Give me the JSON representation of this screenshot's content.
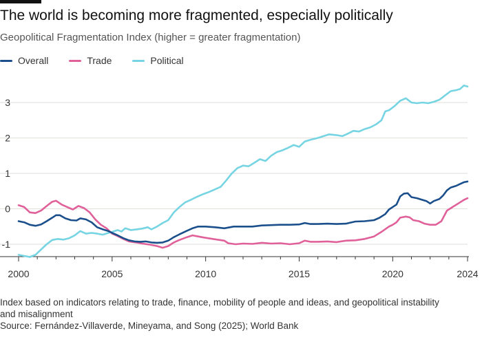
{
  "title": "The world is becoming more fragmented, especially politically",
  "subtitle": "Geopolitical Fragmentation Index (higher = greater fragmentation)",
  "footnote": "Index based on indicators relating to trade, finance, mobility of people and ideas, and geopolitical instability and misalignment",
  "source": "Source: Fernández-Villaverde, Mineyama, and Song (2025); World Bank",
  "colors": {
    "overall": "#1a4f8b",
    "trade": "#e0609a",
    "political": "#76d4e3",
    "grid": "#e2ded9",
    "axis": "#333333"
  },
  "chart_data": {
    "type": "line",
    "title": "Geopolitical Fragmentation Index",
    "xlabel": "",
    "ylabel": "",
    "xlim": [
      2000,
      2024
    ],
    "ylim": [
      -1.4,
      3.6
    ],
    "x_ticks": [
      2000,
      2005,
      2010,
      2015,
      2020,
      2024
    ],
    "y_ticks": [
      -1,
      0,
      1,
      2,
      3
    ],
    "legend_position": "top-left",
    "series": [
      {
        "name": "Overall",
        "color_key": "overall",
        "points": [
          [
            2000,
            -0.35
          ],
          [
            2000.3,
            -0.38
          ],
          [
            2000.6,
            -0.45
          ],
          [
            2000.9,
            -0.48
          ],
          [
            2001.2,
            -0.44
          ],
          [
            2001.5,
            -0.35
          ],
          [
            2001.8,
            -0.25
          ],
          [
            2002,
            -0.18
          ],
          [
            2002.2,
            -0.18
          ],
          [
            2002.5,
            -0.27
          ],
          [
            2002.8,
            -0.32
          ],
          [
            2003.1,
            -0.33
          ],
          [
            2003.3,
            -0.27
          ],
          [
            2003.6,
            -0.3
          ],
          [
            2003.9,
            -0.38
          ],
          [
            2004.2,
            -0.52
          ],
          [
            2004.5,
            -0.58
          ],
          [
            2004.8,
            -0.63
          ],
          [
            2005,
            -0.68
          ],
          [
            2005.3,
            -0.75
          ],
          [
            2005.6,
            -0.83
          ],
          [
            2005.9,
            -0.89
          ],
          [
            2006.2,
            -0.92
          ],
          [
            2006.5,
            -0.93
          ],
          [
            2006.8,
            -0.92
          ],
          [
            2007.1,
            -0.95
          ],
          [
            2007.4,
            -0.96
          ],
          [
            2007.7,
            -0.95
          ],
          [
            2008,
            -0.9
          ],
          [
            2008.3,
            -0.8
          ],
          [
            2008.6,
            -0.72
          ],
          [
            2009,
            -0.62
          ],
          [
            2009.3,
            -0.55
          ],
          [
            2009.6,
            -0.5
          ],
          [
            2010,
            -0.5
          ],
          [
            2010.5,
            -0.52
          ],
          [
            2011,
            -0.55
          ],
          [
            2011.5,
            -0.5
          ],
          [
            2012,
            -0.5
          ],
          [
            2012.5,
            -0.5
          ],
          [
            2013,
            -0.47
          ],
          [
            2013.5,
            -0.46
          ],
          [
            2014,
            -0.45
          ],
          [
            2014.5,
            -0.45
          ],
          [
            2015,
            -0.44
          ],
          [
            2015.3,
            -0.4
          ],
          [
            2015.6,
            -0.43
          ],
          [
            2016,
            -0.43
          ],
          [
            2016.5,
            -0.42
          ],
          [
            2017,
            -0.43
          ],
          [
            2017.5,
            -0.42
          ],
          [
            2018,
            -0.36
          ],
          [
            2018.5,
            -0.35
          ],
          [
            2019,
            -0.32
          ],
          [
            2019.3,
            -0.25
          ],
          [
            2019.6,
            -0.15
          ],
          [
            2019.8,
            -0.02
          ],
          [
            2020,
            0.05
          ],
          [
            2020.2,
            0.12
          ],
          [
            2020.4,
            0.35
          ],
          [
            2020.6,
            0.43
          ],
          [
            2020.8,
            0.44
          ],
          [
            2021,
            0.33
          ],
          [
            2021.3,
            0.3
          ],
          [
            2021.6,
            0.25
          ],
          [
            2021.8,
            0.22
          ],
          [
            2022,
            0.15
          ],
          [
            2022.2,
            0.22
          ],
          [
            2022.5,
            0.28
          ],
          [
            2022.7,
            0.38
          ],
          [
            2022.9,
            0.52
          ],
          [
            2023.1,
            0.6
          ],
          [
            2023.4,
            0.65
          ],
          [
            2023.6,
            0.7
          ],
          [
            2023.8,
            0.75
          ],
          [
            2024,
            0.77
          ]
        ]
      },
      {
        "name": "Trade",
        "color_key": "trade",
        "points": [
          [
            2000,
            0.1
          ],
          [
            2000.3,
            0.05
          ],
          [
            2000.6,
            -0.1
          ],
          [
            2000.9,
            -0.12
          ],
          [
            2001.2,
            -0.05
          ],
          [
            2001.5,
            0.08
          ],
          [
            2001.8,
            0.2
          ],
          [
            2002,
            0.23
          ],
          [
            2002.3,
            0.12
          ],
          [
            2002.6,
            0.05
          ],
          [
            2002.9,
            -0.02
          ],
          [
            2003.2,
            0.08
          ],
          [
            2003.5,
            0.02
          ],
          [
            2003.8,
            -0.1
          ],
          [
            2004.1,
            -0.3
          ],
          [
            2004.4,
            -0.45
          ],
          [
            2004.7,
            -0.55
          ],
          [
            2005,
            -0.7
          ],
          [
            2005.3,
            -0.77
          ],
          [
            2005.6,
            -0.85
          ],
          [
            2005.9,
            -0.92
          ],
          [
            2006.3,
            -0.95
          ],
          [
            2006.6,
            -0.98
          ],
          [
            2007,
            -1.01
          ],
          [
            2007.4,
            -1.05
          ],
          [
            2007.7,
            -1.1
          ],
          [
            2008,
            -1.05
          ],
          [
            2008.3,
            -0.95
          ],
          [
            2008.6,
            -0.88
          ],
          [
            2009,
            -0.8
          ],
          [
            2009.3,
            -0.75
          ],
          [
            2009.6,
            -0.78
          ],
          [
            2010,
            -0.82
          ],
          [
            2010.5,
            -0.86
          ],
          [
            2011,
            -0.9
          ],
          [
            2011.2,
            -0.97
          ],
          [
            2011.6,
            -1.0
          ],
          [
            2012,
            -0.98
          ],
          [
            2012.5,
            -0.99
          ],
          [
            2013,
            -0.96
          ],
          [
            2013.5,
            -0.98
          ],
          [
            2014,
            -0.97
          ],
          [
            2014.5,
            -1.0
          ],
          [
            2015,
            -0.97
          ],
          [
            2015.3,
            -0.9
          ],
          [
            2015.6,
            -0.93
          ],
          [
            2016,
            -0.93
          ],
          [
            2016.5,
            -0.92
          ],
          [
            2017,
            -0.94
          ],
          [
            2017.5,
            -0.9
          ],
          [
            2018,
            -0.89
          ],
          [
            2018.5,
            -0.85
          ],
          [
            2019,
            -0.78
          ],
          [
            2019.4,
            -0.65
          ],
          [
            2019.8,
            -0.5
          ],
          [
            2020,
            -0.45
          ],
          [
            2020.2,
            -0.38
          ],
          [
            2020.4,
            -0.25
          ],
          [
            2020.7,
            -0.22
          ],
          [
            2020.9,
            -0.24
          ],
          [
            2021.1,
            -0.32
          ],
          [
            2021.4,
            -0.35
          ],
          [
            2021.7,
            -0.42
          ],
          [
            2022,
            -0.45
          ],
          [
            2022.3,
            -0.45
          ],
          [
            2022.6,
            -0.35
          ],
          [
            2022.9,
            -0.05
          ],
          [
            2023.2,
            0.05
          ],
          [
            2023.5,
            0.15
          ],
          [
            2023.8,
            0.25
          ],
          [
            2024,
            0.3
          ]
        ]
      },
      {
        "name": "Political",
        "color_key": "political",
        "points": [
          [
            2000,
            -1.3
          ],
          [
            2000.3,
            -1.33
          ],
          [
            2000.6,
            -1.36
          ],
          [
            2000.9,
            -1.3
          ],
          [
            2001.2,
            -1.15
          ],
          [
            2001.5,
            -1.0
          ],
          [
            2001.8,
            -0.88
          ],
          [
            2002.1,
            -0.85
          ],
          [
            2002.4,
            -0.87
          ],
          [
            2002.7,
            -0.83
          ],
          [
            2003,
            -0.75
          ],
          [
            2003.3,
            -0.63
          ],
          [
            2003.6,
            -0.7
          ],
          [
            2003.9,
            -0.68
          ],
          [
            2004.2,
            -0.7
          ],
          [
            2004.5,
            -0.73
          ],
          [
            2004.8,
            -0.68
          ],
          [
            2005,
            -0.65
          ],
          [
            2005.3,
            -0.6
          ],
          [
            2005.5,
            -0.64
          ],
          [
            2005.7,
            -0.55
          ],
          [
            2006,
            -0.6
          ],
          [
            2006.3,
            -0.58
          ],
          [
            2006.6,
            -0.56
          ],
          [
            2006.9,
            -0.52
          ],
          [
            2007.1,
            -0.58
          ],
          [
            2007.4,
            -0.5
          ],
          [
            2007.7,
            -0.4
          ],
          [
            2008,
            -0.32
          ],
          [
            2008.3,
            -0.1
          ],
          [
            2008.6,
            0.05
          ],
          [
            2008.9,
            0.18
          ],
          [
            2009.2,
            0.25
          ],
          [
            2009.5,
            0.33
          ],
          [
            2009.8,
            0.4
          ],
          [
            2010.2,
            0.48
          ],
          [
            2010.5,
            0.55
          ],
          [
            2010.8,
            0.62
          ],
          [
            2011.1,
            0.8
          ],
          [
            2011.4,
            1.0
          ],
          [
            2011.7,
            1.15
          ],
          [
            2012,
            1.22
          ],
          [
            2012.3,
            1.2
          ],
          [
            2012.6,
            1.3
          ],
          [
            2012.9,
            1.4
          ],
          [
            2013.2,
            1.35
          ],
          [
            2013.5,
            1.5
          ],
          [
            2013.8,
            1.6
          ],
          [
            2014.1,
            1.65
          ],
          [
            2014.4,
            1.72
          ],
          [
            2014.7,
            1.8
          ],
          [
            2015,
            1.75
          ],
          [
            2015.3,
            1.9
          ],
          [
            2015.6,
            1.95
          ],
          [
            2016,
            2.0
          ],
          [
            2016.3,
            2.05
          ],
          [
            2016.6,
            2.1
          ],
          [
            2017,
            2.08
          ],
          [
            2017.3,
            2.05
          ],
          [
            2017.6,
            2.12
          ],
          [
            2017.9,
            2.2
          ],
          [
            2018.2,
            2.18
          ],
          [
            2018.5,
            2.25
          ],
          [
            2018.8,
            2.3
          ],
          [
            2019.1,
            2.38
          ],
          [
            2019.4,
            2.5
          ],
          [
            2019.6,
            2.75
          ],
          [
            2019.8,
            2.78
          ],
          [
            2020.1,
            2.9
          ],
          [
            2020.4,
            3.05
          ],
          [
            2020.7,
            3.12
          ],
          [
            2021,
            3.0
          ],
          [
            2021.3,
            2.98
          ],
          [
            2021.6,
            3.0
          ],
          [
            2021.9,
            2.98
          ],
          [
            2022.2,
            3.02
          ],
          [
            2022.5,
            3.08
          ],
          [
            2022.8,
            3.2
          ],
          [
            2023.1,
            3.32
          ],
          [
            2023.4,
            3.35
          ],
          [
            2023.6,
            3.38
          ],
          [
            2023.8,
            3.48
          ],
          [
            2024,
            3.45
          ]
        ]
      }
    ]
  }
}
